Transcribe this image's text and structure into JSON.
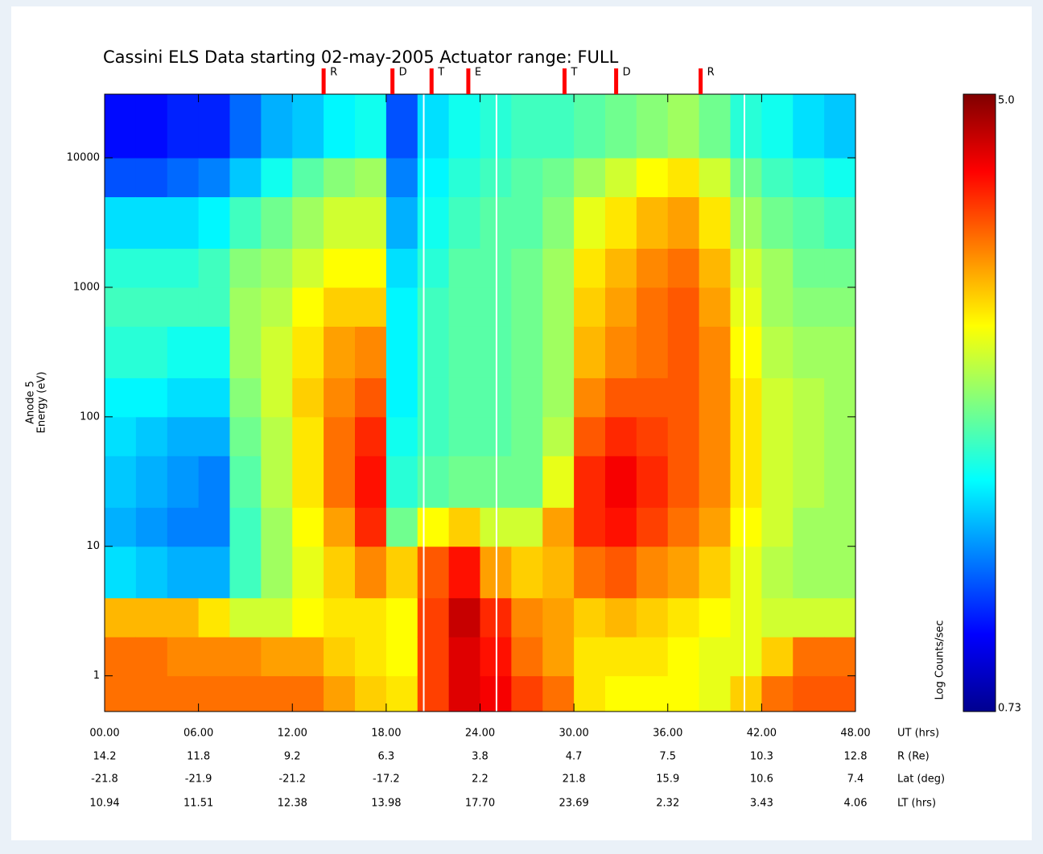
{
  "chart_data": {
    "type": "spectrogram",
    "title": "Cassini ELS Data starting 02-may-2005  Actuator range: FULL",
    "ylabel": [
      "Anode 5",
      "Energy (eV)"
    ],
    "log_y": true,
    "xlim": [
      0,
      48
    ],
    "ylim": [
      0.53,
      31000
    ],
    "xticks": [
      {
        "value": 0,
        "label": "00.00"
      },
      {
        "value": 6,
        "label": "06.00"
      },
      {
        "value": 12,
        "label": "12.00"
      },
      {
        "value": 18,
        "label": "18.00"
      },
      {
        "value": 24,
        "label": "24.00"
      },
      {
        "value": 30,
        "label": "30.00"
      },
      {
        "value": 36,
        "label": "36.00"
      },
      {
        "value": 42,
        "label": "42.00"
      },
      {
        "value": 48,
        "label": "48.00"
      }
    ],
    "yticks": [
      1,
      10,
      100,
      1000,
      10000
    ],
    "xtick_rows": [
      {
        "label": "UT (hrs)"
      },
      {
        "label": "R (Re)",
        "values": [
          "14.2",
          "11.8",
          "9.2",
          "6.3",
          "3.8",
          "4.7",
          "7.5",
          "10.3",
          "12.8"
        ]
      },
      {
        "label": "Lat (deg)",
        "values": [
          "-21.8",
          "-21.9",
          "-21.2",
          "-17.2",
          "2.2",
          "21.8",
          "15.9",
          "10.6",
          "7.4"
        ]
      },
      {
        "label": "LT (hrs)",
        "values": [
          "10.94",
          "11.51",
          "12.38",
          "13.98",
          "17.70",
          "23.69",
          "2.32",
          "3.43",
          "4.06"
        ]
      }
    ],
    "events": [
      {
        "label": "R",
        "x": 14.0
      },
      {
        "label": "D",
        "x": 18.4
      },
      {
        "label": "T",
        "x": 20.9
      },
      {
        "label": "E",
        "x": 23.25
      },
      {
        "label": "T",
        "x": 29.4
      },
      {
        "label": "D",
        "x": 32.7
      },
      {
        "label": "R",
        "x": 38.1
      }
    ],
    "data_gaps": [
      20.4,
      25.05,
      40.9
    ],
    "x_bins": [
      0,
      2,
      4,
      6,
      8,
      10,
      12,
      14,
      16,
      18,
      20,
      22,
      24,
      26,
      28,
      30,
      32,
      34,
      36,
      38,
      40,
      42,
      44,
      46,
      48
    ],
    "y_bins": [
      0.53,
      1,
      2,
      4,
      10,
      20,
      50,
      100,
      200,
      500,
      1000,
      2000,
      5000,
      10000,
      31000
    ],
    "values": [
      [
        4.0,
        4.0,
        3.7,
        2.2,
        2.0,
        2.1,
        2.2,
        2.3,
        2.5,
        2.6,
        2.5,
        2.2,
        1.6,
        1.3
      ],
      [
        4.0,
        4.0,
        3.7,
        2.1,
        1.9,
        2.0,
        2.1,
        2.3,
        2.5,
        2.6,
        2.5,
        2.2,
        1.6,
        1.3
      ],
      [
        4.0,
        3.9,
        3.7,
        2.0,
        1.8,
        1.9,
        2.0,
        2.2,
        2.4,
        2.6,
        2.5,
        2.2,
        1.7,
        1.4
      ],
      [
        4.0,
        3.9,
        3.5,
        2.0,
        1.8,
        1.8,
        2.0,
        2.2,
        2.4,
        2.6,
        2.6,
        2.3,
        1.8,
        1.4
      ],
      [
        4.0,
        3.9,
        3.2,
        2.6,
        2.6,
        2.7,
        2.8,
        2.9,
        3.0,
        3.0,
        2.9,
        2.6,
        2.1,
        1.7
      ],
      [
        4.0,
        3.8,
        3.2,
        3.0,
        3.0,
        3.1,
        3.1,
        3.2,
        3.2,
        3.1,
        3.0,
        2.8,
        2.4,
        2.0
      ],
      [
        4.0,
        3.8,
        3.4,
        3.3,
        3.4,
        3.5,
        3.5,
        3.6,
        3.5,
        3.4,
        3.2,
        3.0,
        2.7,
        2.1
      ],
      [
        3.8,
        3.6,
        3.5,
        3.6,
        3.8,
        4.0,
        4.0,
        3.9,
        3.8,
        3.6,
        3.4,
        3.2,
        2.9,
        2.3
      ],
      [
        3.6,
        3.5,
        3.5,
        3.9,
        4.3,
        4.4,
        4.3,
        4.1,
        3.9,
        3.6,
        3.4,
        3.2,
        3.0,
        2.4
      ],
      [
        3.5,
        3.4,
        3.4,
        3.6,
        2.8,
        2.5,
        2.4,
        2.3,
        2.3,
        2.3,
        2.2,
        2.0,
        1.8,
        1.6
      ],
      [
        4.2,
        4.2,
        4.2,
        4.1,
        3.4,
        2.7,
        2.6,
        2.6,
        2.6,
        2.6,
        2.5,
        2.4,
        2.3,
        2.2
      ],
      [
        4.6,
        4.6,
        4.7,
        4.4,
        3.6,
        2.8,
        2.7,
        2.7,
        2.7,
        2.7,
        2.7,
        2.6,
        2.5,
        2.4
      ],
      [
        4.5,
        4.4,
        4.3,
        3.8,
        3.2,
        2.8,
        2.7,
        2.7,
        2.7,
        2.7,
        2.7,
        2.7,
        2.6,
        2.5
      ],
      [
        4.2,
        4.0,
        3.9,
        3.6,
        3.2,
        2.8,
        2.8,
        2.8,
        2.8,
        2.8,
        2.8,
        2.7,
        2.7,
        2.6
      ],
      [
        4.0,
        3.8,
        3.8,
        3.7,
        3.8,
        3.3,
        3.1,
        3.0,
        3.0,
        3.0,
        3.0,
        2.9,
        2.8,
        2.6
      ],
      [
        3.5,
        3.5,
        3.6,
        4.0,
        4.3,
        4.3,
        4.1,
        3.9,
        3.7,
        3.6,
        3.5,
        3.3,
        3.0,
        2.7
      ],
      [
        3.4,
        3.5,
        3.7,
        4.1,
        4.4,
        4.5,
        4.3,
        4.1,
        3.9,
        3.8,
        3.7,
        3.5,
        3.2,
        2.8
      ],
      [
        3.4,
        3.5,
        3.6,
        3.9,
        4.2,
        4.3,
        4.2,
        4.1,
        4.0,
        4.0,
        3.9,
        3.7,
        3.4,
        2.9
      ],
      [
        3.4,
        3.4,
        3.5,
        3.8,
        4.0,
        4.1,
        4.1,
        4.1,
        4.1,
        4.1,
        4.0,
        3.8,
        3.5,
        3.0
      ],
      [
        3.3,
        3.3,
        3.4,
        3.6,
        3.8,
        3.9,
        3.9,
        3.9,
        3.9,
        3.8,
        3.7,
        3.5,
        3.2,
        2.8
      ],
      [
        3.6,
        3.3,
        3.3,
        3.3,
        3.4,
        3.5,
        3.5,
        3.5,
        3.4,
        3.3,
        3.2,
        3.0,
        2.8,
        2.5
      ],
      [
        4.0,
        3.6,
        3.2,
        3.1,
        3.2,
        3.2,
        3.2,
        3.2,
        3.1,
        3.0,
        3.0,
        2.8,
        2.6,
        2.4
      ],
      [
        4.1,
        4.0,
        3.2,
        3.0,
        3.0,
        3.1,
        3.1,
        3.1,
        3.0,
        2.9,
        2.8,
        2.7,
        2.5,
        2.2
      ],
      [
        4.1,
        4.0,
        3.2,
        3.0,
        3.0,
        3.0,
        3.0,
        3.0,
        3.0,
        2.9,
        2.8,
        2.6,
        2.4,
        2.1
      ]
    ],
    "colorbar_title": "Log Counts/sec",
    "clim": [
      0.73,
      5.0
    ],
    "cticks": [
      0.73,
      {
        "value": 5.0,
        "label": "5.0"
      }
    ],
    "colormap": [
      "#00008f",
      "#0000ff",
      "#0080ff",
      "#00ffff",
      "#80ff80",
      "#ffff00",
      "#ff8000",
      "#ff0000",
      "#800000"
    ],
    "event_color": "#ff0000",
    "event_label_color": "#1a1aa0",
    "gap_color": "#ffffff"
  }
}
